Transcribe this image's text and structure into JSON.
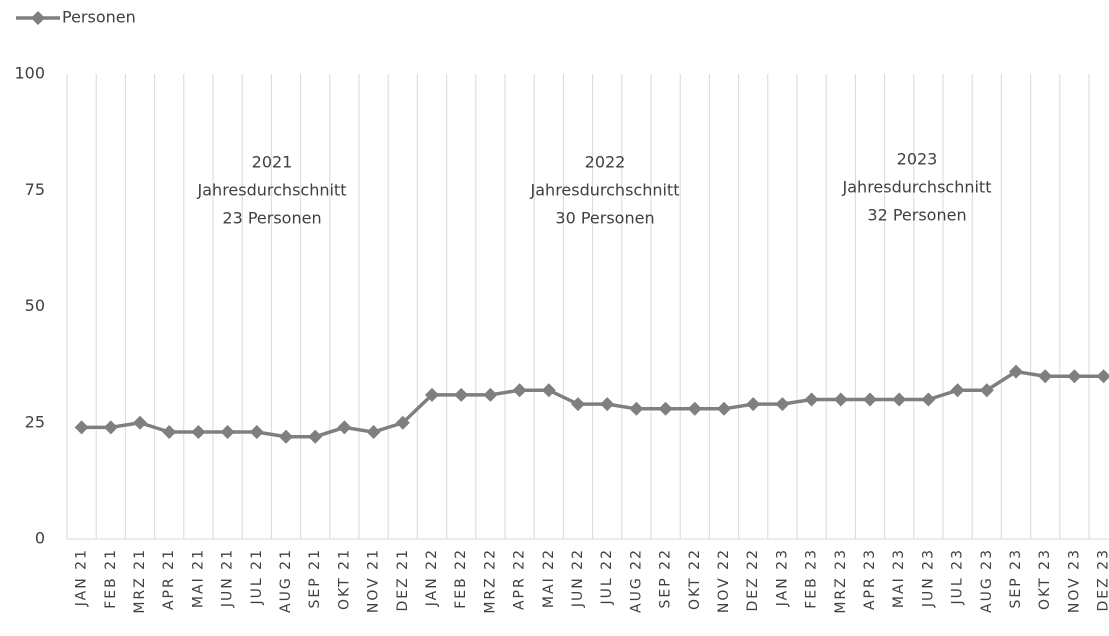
{
  "chart_data": {
    "type": "line",
    "categories": [
      "JAN 21",
      "FEB 21",
      "MRZ 21",
      "APR 21",
      "MAI 21",
      "JUN 21",
      "JUL 21",
      "AUG 21",
      "SEP 21",
      "OKT 21",
      "NOV 21",
      "DEZ 21",
      "JAN 22",
      "FEB 22",
      "MRZ 22",
      "APR 22",
      "MAI 22",
      "JUN 22",
      "JUL 22",
      "AUG 22",
      "SEP 22",
      "OKT 22",
      "NOV 22",
      "DEZ 22",
      "JAN 23",
      "FEB 23",
      "MRZ 23",
      "APR 23",
      "MAI 23",
      "JUN 23",
      "JUL 23",
      "AUG 23",
      "SEP 23",
      "OKT 23",
      "NOV 23",
      "DEZ 23"
    ],
    "series": [
      {
        "name": "Personen",
        "color": "#7f7f7f",
        "values": [
          24,
          24,
          25,
          23,
          23,
          23,
          23,
          22,
          22,
          24,
          23,
          25,
          31,
          31,
          31,
          32,
          32,
          29,
          29,
          28,
          28,
          28,
          28,
          29,
          29,
          30,
          30,
          30,
          30,
          30,
          32,
          32,
          36,
          35,
          35,
          35
        ]
      }
    ],
    "ylim": [
      0,
      100
    ],
    "yticks": [
      0,
      25,
      50,
      75,
      100
    ],
    "grid": true,
    "legend": "top-left",
    "annotations": [
      {
        "lines": [
          "2021",
          "Jahresdurchschnitt",
          "23 Personen"
        ]
      },
      {
        "lines": [
          "2022",
          "Jahresdurchschnitt",
          "30 Personen"
        ]
      },
      {
        "lines": [
          "2023",
          "Jahresdurchschnitt",
          "32 Personen"
        ]
      }
    ]
  }
}
